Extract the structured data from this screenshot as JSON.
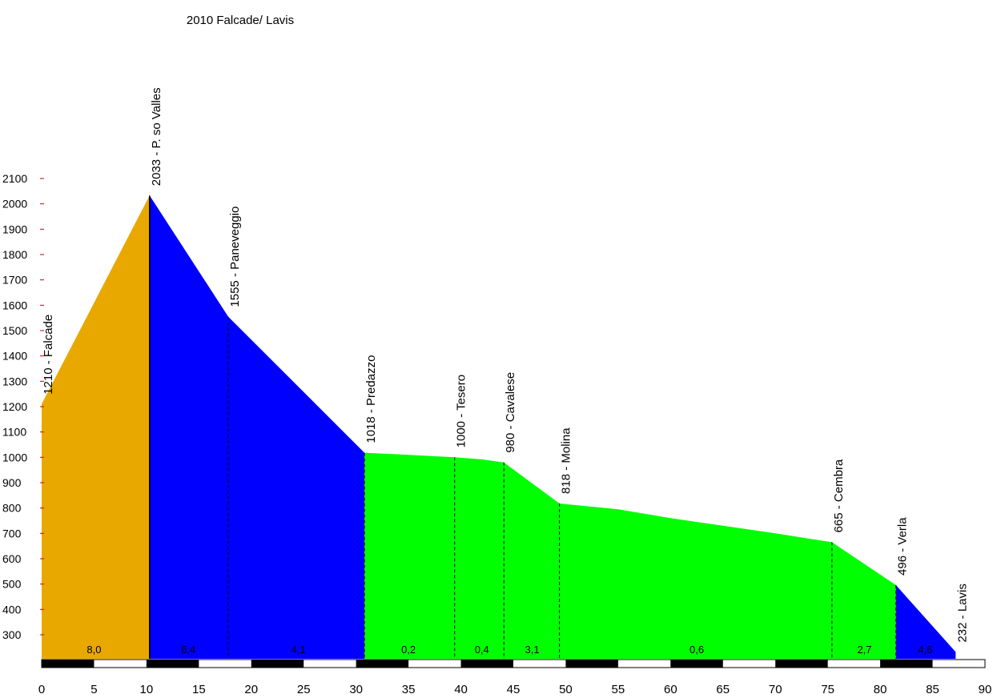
{
  "chart_data": {
    "type": "area",
    "title": "2010 Falcade/ Lavis",
    "xlabel": "",
    "ylabel": "",
    "xlim": [
      0,
      90
    ],
    "ylim": [
      220,
      2100
    ],
    "grid": false,
    "x_ticks": [
      0,
      5,
      10,
      15,
      20,
      25,
      30,
      35,
      40,
      45,
      50,
      55,
      60,
      65,
      70,
      75,
      80,
      85,
      90
    ],
    "y_ticks": [
      300,
      400,
      500,
      600,
      700,
      800,
      900,
      1000,
      1100,
      1200,
      1300,
      1400,
      1500,
      1600,
      1700,
      1800,
      1900,
      2000,
      2100
    ],
    "points": [
      {
        "x": 0,
        "y": 1210,
        "label": "1210 - Falcade"
      },
      {
        "x": 10.3,
        "y": 2033,
        "label": "2033 - P. so Valles"
      },
      {
        "x": 17.8,
        "y": 1555,
        "label": "1555 - Paneveggio"
      },
      {
        "x": 30.8,
        "y": 1018,
        "label": "1018 - Predazzo"
      },
      {
        "x": 39.4,
        "y": 1000,
        "label": "1000 - Tesero"
      },
      {
        "x": 44.1,
        "y": 980,
        "label": "980 - Cavalese"
      },
      {
        "x": 49.4,
        "y": 818,
        "label": "818 - Molina"
      },
      {
        "x": 75.4,
        "y": 665,
        "label": "665 - Cembra"
      },
      {
        "x": 81.5,
        "y": 496,
        "label": "496 - Verla"
      },
      {
        "x": 87.2,
        "y": 232,
        "label": "232 - Lavis"
      }
    ],
    "profile": [
      [
        0,
        1210
      ],
      [
        10.3,
        2033
      ],
      [
        17.8,
        1555
      ],
      [
        30.8,
        1018
      ],
      [
        35,
        1010
      ],
      [
        39.4,
        1000
      ],
      [
        42,
        992
      ],
      [
        44.1,
        980
      ],
      [
        49.4,
        818
      ],
      [
        55,
        795
      ],
      [
        60,
        760
      ],
      [
        65,
        730
      ],
      [
        70,
        700
      ],
      [
        75.4,
        665
      ],
      [
        81.5,
        496
      ],
      [
        87.2,
        232
      ]
    ],
    "segments": [
      {
        "from": 0,
        "to": 10.3,
        "color": "#E8A800"
      },
      {
        "from": 10.3,
        "to": 30.8,
        "color": "#0000FF"
      },
      {
        "from": 30.8,
        "to": 81.5,
        "color": "#00FF00"
      },
      {
        "from": 81.5,
        "to": 87.2,
        "color": "#0000FF"
      }
    ],
    "gradients": [
      {
        "x": 5,
        "label": "8,0"
      },
      {
        "x": 14,
        "label": "6,4"
      },
      {
        "x": 24.5,
        "label": "4,1"
      },
      {
        "x": 35,
        "label": "0,2"
      },
      {
        "x": 42,
        "label": "0,4"
      },
      {
        "x": 46.8,
        "label": "3,1"
      },
      {
        "x": 62.5,
        "label": "0,6"
      },
      {
        "x": 78.5,
        "label": "2,7"
      },
      {
        "x": 84.3,
        "label": "4,6"
      }
    ]
  }
}
